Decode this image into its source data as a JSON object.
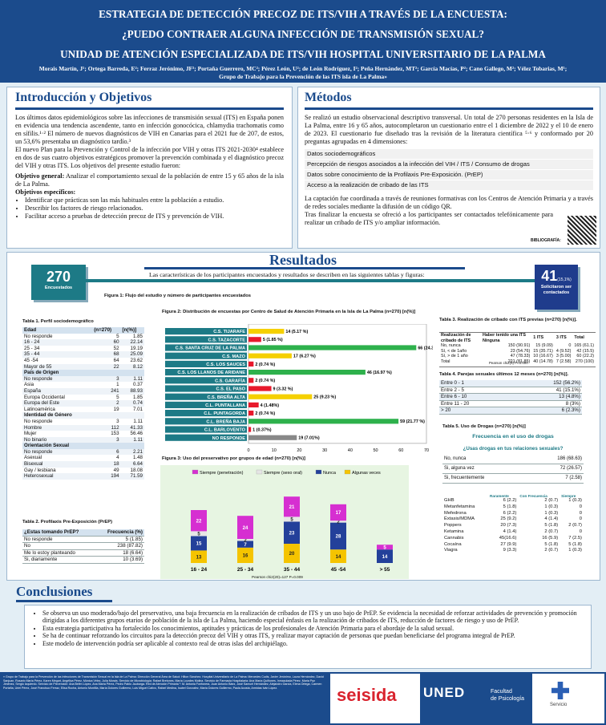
{
  "title": {
    "line1": "ESTRATEGIA DE DETECCIÓN PRECOZ DE ITS/VIH A TRAVÉS DE LA ENCUESTA:",
    "line2": "¿PUEDO CONTRAER ALGUNA INFECCIÓN DE TRANSMISIÓN SEXUAL?",
    "line3": "UNIDAD DE ATENCIÓN ESPECIALIZADA DE ITS/VIH HOSPITAL UNIVERSITARIO DE LA PALMA"
  },
  "authors": "Morais Martín, J¹; Ortega Barreda, E²; Ferraz Jerónimo, JF²; Portaña Guerrero, MC²; Pérez León, U²; de León Rodríguez, I²; Peña Hernández, MT²; García Macías, P²; Cano Gallego, M²; Vélez Tobarias, M¹; Grupo de Trabajo para la Prevención de las ITS isla de La Palma»",
  "intro": {
    "heading": "Introducción y Objetivos",
    "p1": "Los últimos datos epidemiológicos sobre las infecciones de transmisión sexual (ITS) en España ponen en evidencia una tendencia ascendente, tanto en infección gonocócica, chlamydia trachomatis como en sífilis.¹·² El número de nuevos diagnósticos de VIH en Canarias para el 2021 fue de 207, de estos, un 53,6% presentaba un diagnóstico tardío.³",
    "p2": "El nuevo Plan para la Prevención y Control de la infección por VIH y otras ITS 2021-2030⁴ establece en dos de sus cuatro objetivos estratégicos promover la prevención combinada y el diagnóstico precoz del VIH y otras ITS. Los objetivos del presente estudio fueron:",
    "general_label": "Objetivo general:",
    "general": "Analizar el comportamiento sexual de la población de entre 15 y 65 años de la isla de La Palma.",
    "specific_label": "Objetivos específicos:",
    "specific": [
      "Identificar que prácticas son las más habituales entre la población a estudio.",
      "Describir los factores de riesgo relacionados.",
      "Facilitar acceso a pruebas de detección precoz de ITS y prevención de VIH."
    ]
  },
  "methods": {
    "heading": "Métodos",
    "p1": "Se realizó un estudio observacional descriptivo transversal. Un total de 270 personas residentes en la Isla de La Palma, entre 16 y 65 años, autocompletaron un cuestionario entre el 1 diciembre de 2022 y el 10 de enero de 2023. El cuestionario fue diseñado tras la revisión de la literatura científica ⁵·⁶ y conformado por 20 preguntas agrupadas en 4 dimensiones:",
    "dims": [
      "Datos sociodemográficos",
      "Percepción de riesgos asociados a la infección del VIH / ITS / Consumo de drogas",
      "Datos sobre conocimiento de la Profilaxis Pre-Exposición. (PrEP)",
      "Acceso a la realización de cribado de las ITS"
    ],
    "p2": "La captación fue coordinada a través de reuniones formativas con los Centros de Atención Primaria y a través de redes sociales mediante la difusión de un código QR.",
    "p3": "Tras finalizar la encuesta se ofreció a los participantes ser contactados telefónicamente para realizar un cribado de ITS y/o ampliar información.",
    "biblio": "BIBLIOGRAFÍA:"
  },
  "results": {
    "heading": "Resultados",
    "intro": "Las características de los participantes encuestados y resultados se describen en las siguientes tablas y figuras:",
    "n_left": "270",
    "n_left_label": "Encuestados",
    "n_right": "41",
    "n_right_pct": "(15,1%)",
    "n_right_label": "Solicitaron ser contactados",
    "fig1": "Figura 1: Flujo del estudio y número de participantes encuestados"
  },
  "table1": {
    "caption": "Tabla 1. Perfil sociodemográfico",
    "head": [
      "Edad",
      "(n=270)",
      "[n(%)]"
    ],
    "rows": [
      [
        "No responde",
        "5",
        "1.85"
      ],
      [
        "16 - 24",
        "60",
        "22.14"
      ],
      [
        "25 - 34",
        "52",
        "19.19"
      ],
      [
        "35 - 44",
        "68",
        "25.09"
      ],
      [
        "45 -54",
        "64",
        "23.62"
      ],
      [
        "Mayor de 55",
        "22",
        "8.12"
      ],
      [
        "País de Origen",
        "",
        ""
      ],
      [
        "No responde",
        "3",
        "1.11"
      ],
      [
        "Asia",
        "1",
        "0.37"
      ],
      [
        "España",
        "241",
        "88.93"
      ],
      [
        "Europa Occidental",
        "5",
        "1.85"
      ],
      [
        "Europa del Este",
        "2",
        "0.74"
      ],
      [
        "Latinoamérica",
        "19",
        "7.01"
      ],
      [
        "Identidad de Género",
        "",
        ""
      ],
      [
        "No responde",
        "3",
        "1.11"
      ],
      [
        "Hombre",
        "112",
        "41.33"
      ],
      [
        "Mujer",
        "153",
        "56.46"
      ],
      [
        "No binario",
        "3",
        "1.11"
      ],
      [
        "Orientación Sexual",
        "",
        ""
      ],
      [
        "No responde",
        "6",
        "2.21"
      ],
      [
        "Asexual",
        "4",
        "1.48"
      ],
      [
        "Bisexual",
        "18",
        "6.64"
      ],
      [
        "Gay / lesbiana",
        "49",
        "18.08"
      ],
      [
        "Heterosexual",
        "194",
        "71.59"
      ]
    ]
  },
  "table2": {
    "caption": "Tabla 2. Profilaxis Pre-Exposición (PrEP)",
    "head": [
      "¿Estas tomando PrEP?",
      "Frecuencia (%)"
    ],
    "rows": [
      [
        "No responde",
        "5 (1.85)"
      ],
      [
        "No",
        "238 (87.82)"
      ],
      [
        "Me lo estoy planteando",
        "18 (6.64)"
      ],
      [
        "Si, diariamente",
        "10 (3.69)"
      ]
    ]
  },
  "fig2": {
    "caption": "Figura 2: Distribución de encuestas por Centro de Salud de Atención Primaria en la Isla de La Palma (n=270) [n(%)]",
    "ticks": [
      "0",
      "10",
      "20",
      "30",
      "40",
      "50",
      "60",
      "70"
    ]
  },
  "fig3": {
    "caption": "Figura 3: Uso del preservativo por grupos de edad (n=270) [n(%)]",
    "legend": [
      "Siempre (penetración)",
      "Siempre (sexo oral)",
      "Nunca",
      "Algunas veces"
    ],
    "pearson": "Pearson chi2(20)=127 P=0.009"
  },
  "table3": {
    "caption": "Tabla 3. Realización de cribado con ITS previas (n=270) [n(%)].",
    "head": [
      "Realización de cribado de ITS",
      "Haber tenido una ITS Ninguna",
      "1 ITS",
      "3 ITS",
      "Total"
    ],
    "rows": [
      [
        "No, nunca",
        "150 (90.91)",
        "15 (9.09)",
        "0",
        "165 (61.1)"
      ],
      [
        "Sí, < de 1año",
        "23 (54.76)",
        "15 (35.71)",
        "4 (9.52)",
        "42 (15.5)"
      ],
      [
        "Sí, > de 1 año",
        "47 (78.33)",
        "10 (16.67)",
        "3 (5.00)",
        "60 (22.2)"
      ],
      [
        "Total",
        "221 (81.85)",
        "40 (14.78)",
        "7 (2.58)",
        "270 (100)"
      ]
    ],
    "pearson": "Pearson chi2(9) P=0.000"
  },
  "table4": {
    "caption": "Tabla 4. Parejas sexuales últimos 12 meses (n=270) [n(%)].",
    "rows": [
      [
        "Entre 0 - 1",
        "152 (56.2%)"
      ],
      [
        "Entre 2 - 5",
        "41 (15.1%)"
      ],
      [
        "Entre 6 - 10",
        "13 (4.8%)"
      ],
      [
        "Entre 11 - 20",
        "8 (3%)"
      ],
      [
        "> 20",
        "6 (2.3%)"
      ]
    ]
  },
  "table5": {
    "caption": "Tabla 5. Uso de Drogas (n=270) [n(%)]",
    "freq_title": "Frecuencia en el uso de drogas",
    "q": "¿Usas drogas en tus relaciones sexuales?",
    "qrows": [
      [
        "No, nunca",
        "186 (68.63)"
      ],
      [
        "Si, alguna vez",
        "72 (26.57)"
      ],
      [
        "Si, frecuentemente",
        "7 (2.58)"
      ]
    ],
    "dhead": [
      "",
      "Raramente",
      "Con Frecuencia",
      "Siempre"
    ],
    "drows": [
      [
        "GHB",
        "6 (2.2)",
        "2 (0.7)",
        "1 (0.3)"
      ],
      [
        "Metanfetamina",
        "5 (1.8)",
        "1 (0.3)",
        "0"
      ],
      [
        "Mefedrona",
        "6 (2.2)",
        "1 (0.3)",
        "0"
      ],
      [
        "Éxtasis/MDMA",
        "25 (9.2)",
        "4 (1.4)",
        "0"
      ],
      [
        "Poppers",
        "20 (7.3)",
        "5 (1.8)",
        "2 (0.7)"
      ],
      [
        "Ketamina",
        "4 (1.4)",
        "2 (0.7)",
        "0"
      ],
      [
        "Cannabis",
        "45(16.6)",
        "16 (5.9)",
        "7 (2.5)"
      ],
      [
        "Cocaína",
        "27 (9.9)",
        "5 (1.8)",
        "5 (1.8)"
      ],
      [
        "Viagra",
        "9 (3.3)",
        "2 (0.7)",
        "1 (0.3)"
      ]
    ]
  },
  "conclusions": {
    "heading": "Conclusiones",
    "items": [
      "Se observa un uso moderado/bajo del preservativo, una baja frecuencia en la realización de cribados de ITS y un uso bajo de PrEP. Se evidencia la necesidad de reforzar actividades de prevención y promoción dirigidas a los diferentes grupos etarios de población de la isla de La Palma, haciendo especial énfasis en la realización de cribados de ITS, reducción de factores de riesgo y uso de PrEP.",
      "Esta estrategia participativa ha fortalecido los conocimientos, aptitudes y prácticas de los profesionales de Atención Primaria para el abordaje de la salud sexual.",
      "Se ha de continuar reforzando los circuitos para la detección precoz del VIH y otras ITS, y realizar mayor captación de personas que puedan beneficiarse del programa integral de PrEP.",
      "Este modelo de intervención podría ser aplicable al contexto real de otras islas del archipiélago."
    ]
  },
  "footer": {
    "text": "» Grupo de Trabajo para la Prevención de las Infecciones de Transmisión Sexual en la Isla de La Palma: Dirección General Área de Salud: Hilton Sánchez. Hospital Universitario de La Palma: Mercedes Cudis, Javier Jerónimo, Laura Hernández, David Sanjuan, Rosario María Pérez, Karen Megart, Angélica Pérez, Mónica Vélez, Julia Morais. Servicio de Microbiología: Rafael Bretones, María Lourdes Molina. Servicio de Farmacia Hospitalaria: Ana María Quiñones, Inmaculada Pérez, María Paz Jiménez, Sergio Izquierdo. Servicio de Prevención: Ana Belén López, Ana María Pérez, Pedro Pablo Jaubarga. Red de Atención Primaria ¹: M. Antonia Fonfonera, Juan Antonio Báez, José Samuel Hernández, Alejandro García, Elena Ortega, Carmen Portaña, Uriel Pérez, José Francisco Ferraz, Elisa Rocha, Antonio Montilla, María Dolores Guillermo, Luis Miguel Cativo, Rafael Medina, Isabel Gonzalez, María Dolores Guillermo, Paula Acosta, Armidas Iván López.",
    "logo1": "seisida",
    "logo2": "UNED",
    "logo3a": "Facultad",
    "logo3b": "de Psicología",
    "logo4": "Servicio"
  },
  "chart_data": [
    {
      "type": "bar",
      "orientation": "horizontal",
      "title": "Figura 2: Distribución de encuestas por Centro de Salud de Atención Primaria en la Isla de La Palma (n=270) [n(%)]",
      "xlim": [
        0,
        70
      ],
      "categories": [
        "C.S. TIJARAFE",
        "C.S. TAZACORTE",
        "C.S. SANTA CRUZ DE LA PALMA",
        "C.S. MAZO",
        "C.S. LOS SAUCES",
        "C.S. LOS LLANOS DE ARIDANE",
        "C.S. GARAFÍA",
        "C.S. EL PASO",
        "C.S. BREÑA ALTA",
        "C.L. PUNTALLANA",
        "C.L. PUNTAGORDA",
        "C.L. BREÑA BAJA",
        "C.L. BARLOVENTO",
        "NO RESPONDE"
      ],
      "values": [
        14,
        5,
        66,
        17,
        2,
        46,
        2,
        9,
        25,
        4,
        2,
        59,
        1,
        19
      ],
      "labels": [
        "14 (5.17 %)",
        "5 (1.85 %)",
        "66 (24.35 %)",
        "17 (6.27 %)",
        "2 (0.74 %)",
        "46 (16.97 %)",
        "2 (0.74 %)",
        "9 (3.32 %)",
        "25 (9.23 %)",
        "4 (1.48%)",
        "2 (0.74 %)",
        "59 (21.77 %)",
        "1 (0.37%)",
        "19 (7.01%)"
      ],
      "colors": [
        "#f5d000",
        "#e8192c",
        "#2eb14c",
        "#f5d000",
        "#e8192c",
        "#2eb14c",
        "#e8192c",
        "#e8192c",
        "#f5d000",
        "#e8192c",
        "#e8192c",
        "#2eb14c",
        "#e8192c",
        "#888888"
      ]
    },
    {
      "type": "bar",
      "stacked": true,
      "title": "Figura 3: Uso del preservativo por grupos de edad (n=270) [n(%)]",
      "categories": [
        "16 - 24",
        "25 - 34",
        "35 - 44",
        "45 -54",
        "> 55"
      ],
      "series": [
        {
          "name": "Algunas veces",
          "color": "#f5c400",
          "values": [
            13,
            16,
            20,
            14,
            0
          ]
        },
        {
          "name": "Nunca",
          "color": "#23409a",
          "values": [
            15,
            7,
            23,
            28,
            14
          ]
        },
        {
          "name": "Siempre (sexo oral)",
          "color": "#e6e6e6",
          "values": [
            5,
            2,
            5,
            2,
            0
          ]
        },
        {
          "name": "Siempre (penetración)",
          "color": "#d62fd1",
          "values": [
            22,
            24,
            21,
            17,
            5
          ]
        }
      ],
      "ylim": [
        0,
        70
      ]
    }
  ]
}
